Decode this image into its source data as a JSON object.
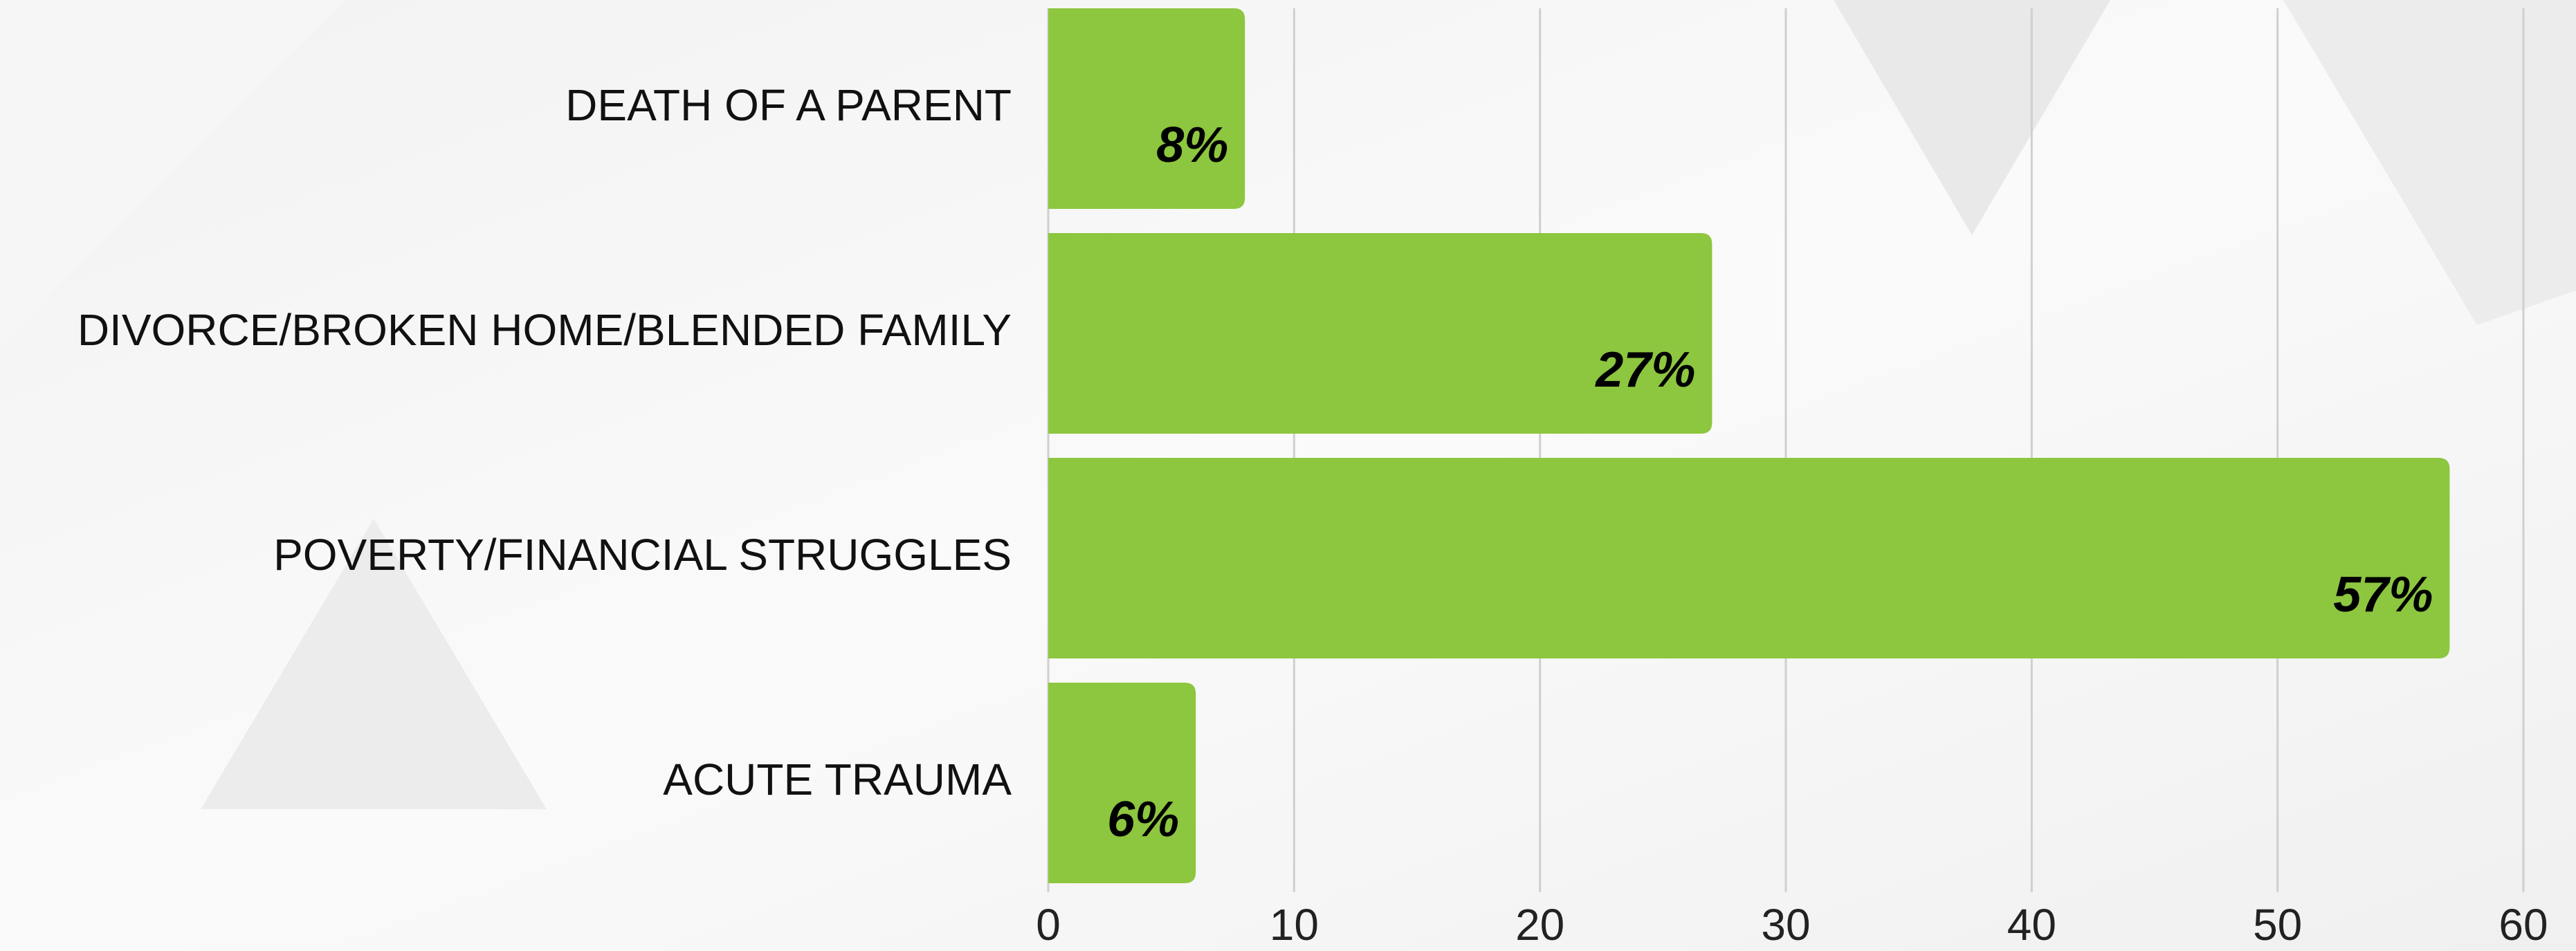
{
  "chart_data": {
    "type": "barh",
    "categories": [
      "DEATH OF A PARENT",
      "DIVORCE/BROKEN HOME/BLENDED FAMILY",
      "POVERTY/FINANCIAL STRUGGLES",
      "ACUTE TRAUMA"
    ],
    "values": [
      8,
      27,
      57,
      6
    ],
    "value_labels": [
      "8%",
      "27%",
      "57%",
      "6%"
    ],
    "color": "#8dc63f",
    "xlim": [
      0,
      60
    ],
    "xticks": [
      0,
      10,
      20,
      30,
      40,
      50,
      60
    ],
    "grid": true
  }
}
